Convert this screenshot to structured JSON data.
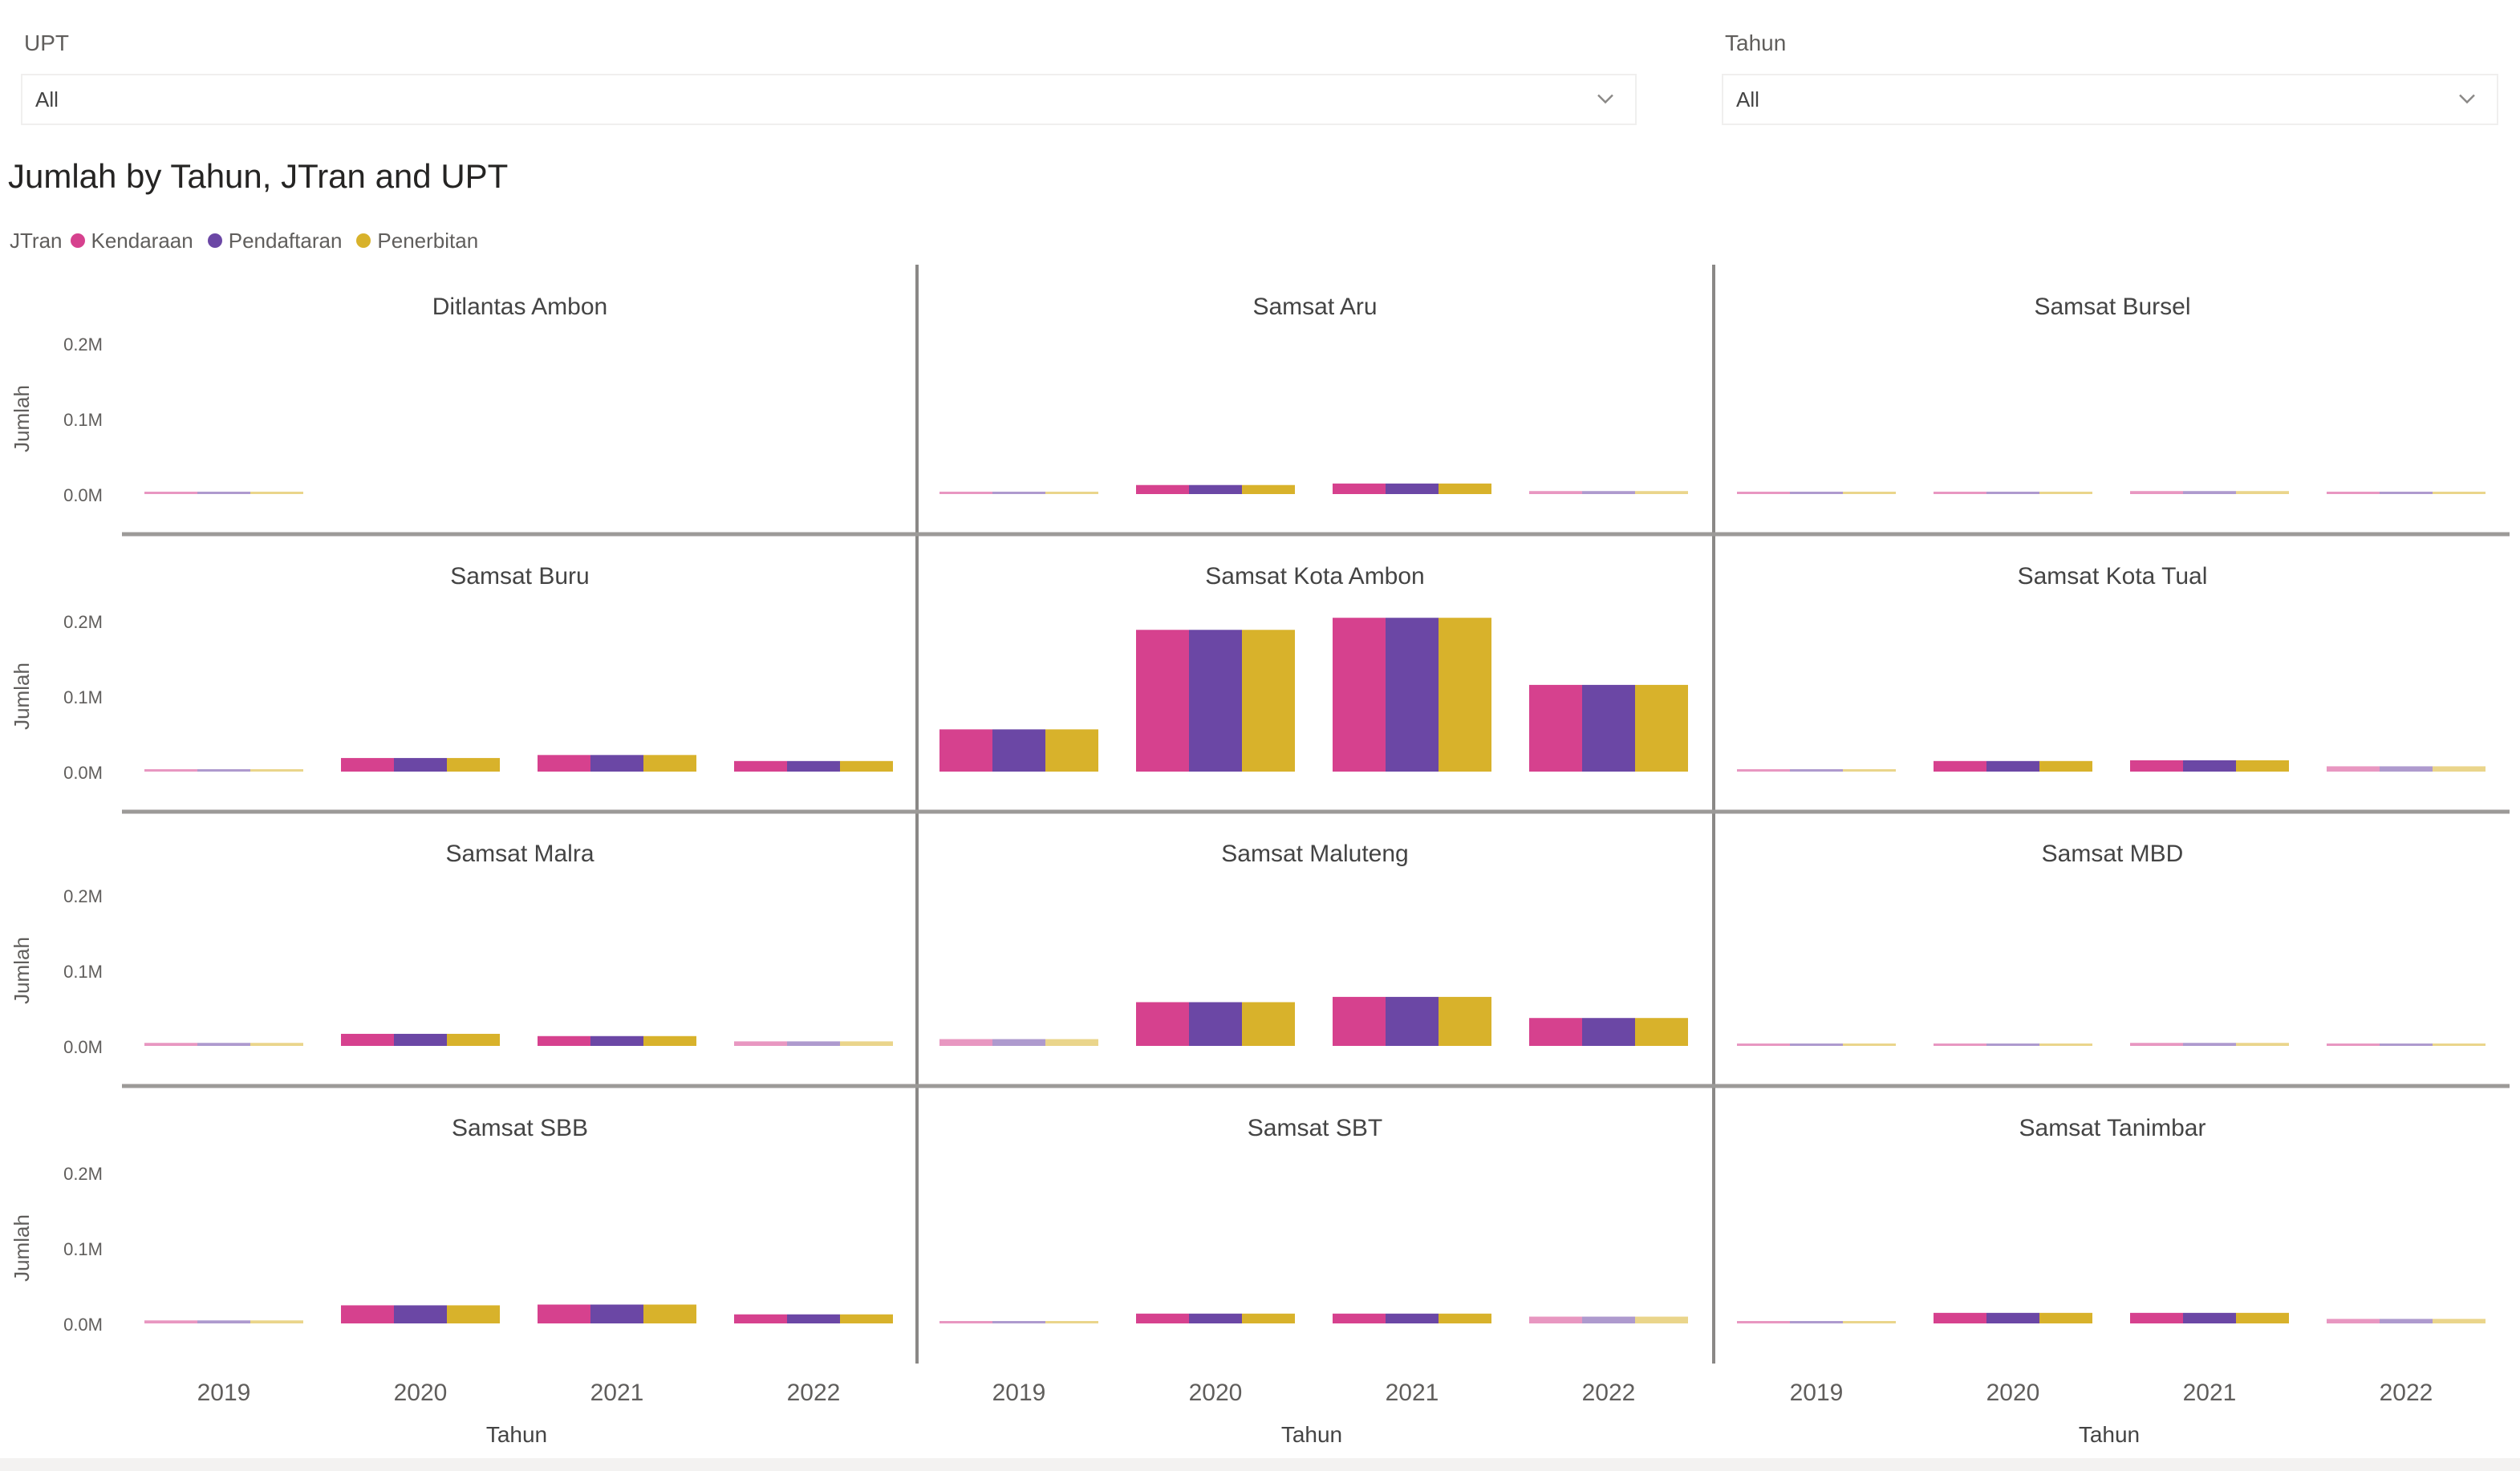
{
  "filters": [
    {
      "label": "UPT",
      "value": "All"
    },
    {
      "label": "Tahun",
      "value": "All"
    }
  ],
  "chart_data": {
    "type": "bar",
    "title": "Jumlah by Tahun, JTran and UPT",
    "legend_title": "JTran",
    "legend_position": "top-left",
    "xlabel": "Tahun",
    "ylabel": "Jumlah",
    "ylim": [
      0,
      0.2
    ],
    "yticks": [
      "0.2M",
      "0.1M",
      "0.0M"
    ],
    "categories": [
      "2019",
      "2020",
      "2021",
      "2022"
    ],
    "series_names": [
      "Kendaraan",
      "Pendaftaran",
      "Penerbitan"
    ],
    "colors": [
      "#d6418e",
      "#6b47a5",
      "#d8b22b"
    ],
    "panels": [
      {
        "name": "Ditlantas Ambon",
        "values": [
          0.002,
          null,
          null,
          null
        ]
      },
      {
        "name": "Samsat Aru",
        "values": [
          0.002,
          0.012,
          0.014,
          0.004
        ]
      },
      {
        "name": "Samsat Bursel",
        "values": [
          0.002,
          0.002,
          0.004,
          0.002
        ]
      },
      {
        "name": "Samsat Buru",
        "values": [
          0.003,
          0.018,
          0.022,
          0.014
        ]
      },
      {
        "name": "Samsat Kota Ambon",
        "values": [
          0.056,
          0.188,
          0.204,
          0.115
        ]
      },
      {
        "name": "Samsat Kota Tual",
        "values": [
          0.003,
          0.014,
          0.015,
          0.007
        ]
      },
      {
        "name": "Samsat Malra",
        "values": [
          0.004,
          0.016,
          0.013,
          0.006
        ]
      },
      {
        "name": "Samsat Maluteng",
        "values": [
          0.009,
          0.058,
          0.065,
          0.037
        ]
      },
      {
        "name": "Samsat MBD",
        "values": [
          0.003,
          0.003,
          0.004,
          0.003
        ]
      },
      {
        "name": "Samsat SBB",
        "values": [
          0.004,
          0.024,
          0.025,
          0.012
        ]
      },
      {
        "name": "Samsat SBT",
        "values": [
          0.003,
          0.013,
          0.013,
          0.009
        ]
      },
      {
        "name": "Samsat Tanimbar",
        "values": [
          0.002,
          0.014,
          0.014,
          0.006
        ]
      }
    ]
  }
}
